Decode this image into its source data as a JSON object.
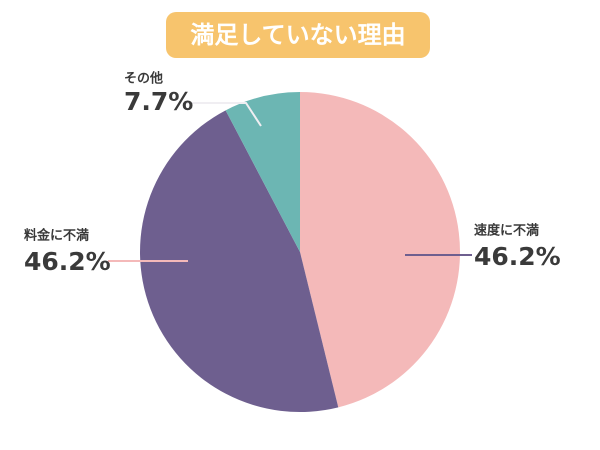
{
  "chart_data": {
    "type": "pie",
    "title": "満足していない理由",
    "categories": [
      "速度に不満",
      "料金に不満",
      "その他"
    ],
    "values": [
      46.2,
      46.2,
      7.7
    ],
    "value_labels": [
      "46.2%",
      "46.2%",
      "7.7%"
    ],
    "colors": [
      "#f4b9b9",
      "#6e5f8f",
      "#6cb6b3"
    ]
  }
}
